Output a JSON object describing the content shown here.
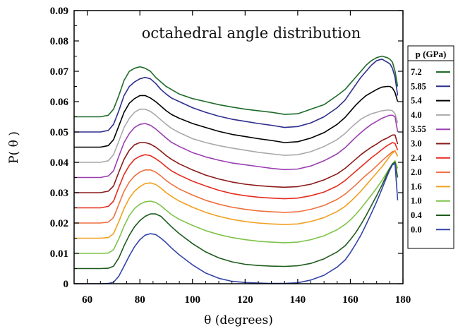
{
  "chart_data": {
    "type": "line",
    "title": "octahedral angle distribution",
    "xlabel": "θ (degrees)",
    "ylabel": "P( θ )",
    "xlim": [
      55,
      180
    ],
    "ylim": [
      0,
      0.09
    ],
    "xticks": [
      "60",
      "80",
      "100",
      "120",
      "140",
      "160",
      "180"
    ],
    "yticks": [
      "0",
      "0.01",
      "0.02",
      "0.03",
      "0.04",
      "0.05",
      "0.06",
      "0.07",
      "0.08",
      "0.09"
    ],
    "legend": {
      "title": "p (GPa)",
      "placement": "right"
    },
    "x": [
      55,
      60,
      65,
      68,
      70,
      72,
      74,
      76,
      78,
      80,
      82,
      84,
      86,
      88,
      90,
      92,
      95,
      100,
      105,
      110,
      115,
      120,
      125,
      130,
      135,
      140,
      145,
      150,
      155,
      158,
      160,
      162,
      164,
      166,
      168,
      170,
      172,
      174,
      175,
      176,
      177,
      178
    ],
    "series": [
      {
        "name": "7.2",
        "color": "#1f6b2a",
        "values": [
          0.055,
          0.055,
          0.055,
          0.0555,
          0.0575,
          0.062,
          0.067,
          0.07,
          0.071,
          0.0715,
          0.071,
          0.07,
          0.068,
          0.0665,
          0.065,
          0.064,
          0.0625,
          0.061,
          0.06,
          0.059,
          0.0582,
          0.0575,
          0.057,
          0.0565,
          0.0558,
          0.056,
          0.0575,
          0.059,
          0.062,
          0.064,
          0.066,
          0.068,
          0.07,
          0.072,
          0.0735,
          0.0745,
          0.075,
          0.0745,
          0.074,
          0.073,
          0.07,
          0.065
        ]
      },
      {
        "name": "5.85",
        "color": "#2e2e8c",
        "values": [
          0.05,
          0.05,
          0.05,
          0.0505,
          0.0525,
          0.057,
          0.062,
          0.065,
          0.0665,
          0.0675,
          0.068,
          0.0675,
          0.066,
          0.064,
          0.0625,
          0.0612,
          0.06,
          0.058,
          0.0565,
          0.0552,
          0.0542,
          0.0535,
          0.0528,
          0.0522,
          0.0515,
          0.0518,
          0.053,
          0.055,
          0.058,
          0.0605,
          0.063,
          0.0655,
          0.068,
          0.07,
          0.072,
          0.0735,
          0.074,
          0.073,
          0.0725,
          0.071,
          0.068,
          0.062
        ]
      },
      {
        "name": "5.4",
        "color": "#000000",
        "values": [
          0.045,
          0.045,
          0.045,
          0.0455,
          0.0475,
          0.052,
          0.0565,
          0.0595,
          0.061,
          0.062,
          0.062,
          0.0612,
          0.06,
          0.0585,
          0.057,
          0.0558,
          0.0545,
          0.0528,
          0.0515,
          0.0502,
          0.0492,
          0.0485,
          0.0478,
          0.0472,
          0.0465,
          0.0468,
          0.048,
          0.0498,
          0.0525,
          0.0548,
          0.0568,
          0.0588,
          0.0605,
          0.062,
          0.063,
          0.064,
          0.0648,
          0.065,
          0.065,
          0.0645,
          0.063,
          0.06
        ]
      },
      {
        "name": "4.0",
        "color": "#a9a9a9",
        "values": [
          0.04,
          0.04,
          0.04,
          0.0405,
          0.0425,
          0.047,
          0.0515,
          0.0545,
          0.0565,
          0.0575,
          0.0575,
          0.0568,
          0.0555,
          0.054,
          0.0525,
          0.0512,
          0.0498,
          0.0478,
          0.0465,
          0.0455,
          0.0447,
          0.044,
          0.0433,
          0.0428,
          0.0423,
          0.0425,
          0.0435,
          0.0452,
          0.0475,
          0.0495,
          0.0512,
          0.0528,
          0.0542,
          0.0552,
          0.056,
          0.0565,
          0.057,
          0.0572,
          0.0572,
          0.057,
          0.056,
          0.053
        ]
      },
      {
        "name": "3.55",
        "color": "#9a3fb0",
        "values": [
          0.035,
          0.035,
          0.035,
          0.0355,
          0.0372,
          0.042,
          0.0465,
          0.0495,
          0.0515,
          0.0525,
          0.0528,
          0.0522,
          0.051,
          0.0495,
          0.048,
          0.0466,
          0.0452,
          0.0432,
          0.0418,
          0.0407,
          0.0398,
          0.0392,
          0.0386,
          0.038,
          0.0376,
          0.0378,
          0.0388,
          0.0405,
          0.0428,
          0.0448,
          0.0465,
          0.0482,
          0.0498,
          0.0512,
          0.0525,
          0.0535,
          0.0545,
          0.0552,
          0.0555,
          0.0555,
          0.055,
          0.05
        ]
      },
      {
        "name": "3.0",
        "color": "#8b1a1a",
        "values": [
          0.03,
          0.03,
          0.03,
          0.0305,
          0.0322,
          0.0368,
          0.041,
          0.044,
          0.0458,
          0.0465,
          0.0465,
          0.046,
          0.045,
          0.0437,
          0.0422,
          0.041,
          0.0395,
          0.0375,
          0.0358,
          0.0345,
          0.0335,
          0.0328,
          0.0323,
          0.032,
          0.0318,
          0.032,
          0.0328,
          0.0342,
          0.0362,
          0.038,
          0.0395,
          0.041,
          0.0425,
          0.0438,
          0.045,
          0.046,
          0.0472,
          0.048,
          0.0485,
          0.049,
          0.049,
          0.046
        ]
      },
      {
        "name": "2.4",
        "color": "#e52c1f",
        "values": [
          0.025,
          0.025,
          0.025,
          0.0255,
          0.0272,
          0.0318,
          0.036,
          0.039,
          0.041,
          0.042,
          0.0425,
          0.0422,
          0.0412,
          0.04,
          0.0385,
          0.0372,
          0.0358,
          0.0338,
          0.0322,
          0.0308,
          0.0297,
          0.029,
          0.0285,
          0.0282,
          0.028,
          0.0282,
          0.029,
          0.0302,
          0.0322,
          0.034,
          0.0355,
          0.037,
          0.0385,
          0.04,
          0.0415,
          0.0428,
          0.0442,
          0.0455,
          0.046,
          0.0465,
          0.0462,
          0.044
        ]
      },
      {
        "name": "2.0",
        "color": "#f07040",
        "values": [
          0.02,
          0.02,
          0.02,
          0.0203,
          0.0218,
          0.0262,
          0.0305,
          0.0335,
          0.0355,
          0.0368,
          0.0375,
          0.0375,
          0.0368,
          0.0355,
          0.034,
          0.0328,
          0.0312,
          0.0292,
          0.0275,
          0.0262,
          0.0252,
          0.0245,
          0.024,
          0.0237,
          0.0235,
          0.0237,
          0.0245,
          0.0258,
          0.0278,
          0.0295,
          0.031,
          0.0325,
          0.0342,
          0.0358,
          0.0372,
          0.0388,
          0.0405,
          0.042,
          0.0428,
          0.0435,
          0.0438,
          0.042
        ]
      },
      {
        "name": "1.6",
        "color": "#f0a020",
        "values": [
          0.015,
          0.015,
          0.015,
          0.0152,
          0.0165,
          0.0205,
          0.0248,
          0.0282,
          0.0305,
          0.032,
          0.033,
          0.0332,
          0.0327,
          0.0315,
          0.03,
          0.0288,
          0.0272,
          0.0252,
          0.0235,
          0.0222,
          0.0212,
          0.0205,
          0.02,
          0.0197,
          0.0195,
          0.0197,
          0.0205,
          0.0218,
          0.0238,
          0.0255,
          0.027,
          0.0287,
          0.0305,
          0.0325,
          0.0345,
          0.0365,
          0.0385,
          0.0408,
          0.042,
          0.043,
          0.0438,
          0.042
        ]
      },
      {
        "name": "1.0",
        "color": "#7ec34a",
        "values": [
          0.01,
          0.01,
          0.01,
          0.0101,
          0.0112,
          0.0148,
          0.019,
          0.0225,
          0.0248,
          0.0262,
          0.027,
          0.0272,
          0.0268,
          0.0257,
          0.0242,
          0.0228,
          0.0212,
          0.0192,
          0.0175,
          0.0162,
          0.0152,
          0.0145,
          0.014,
          0.0137,
          0.0135,
          0.0137,
          0.0145,
          0.0158,
          0.0178,
          0.0195,
          0.021,
          0.0228,
          0.0248,
          0.027,
          0.0292,
          0.0315,
          0.034,
          0.0368,
          0.0382,
          0.0395,
          0.0405,
          0.038
        ]
      },
      {
        "name": "0.4",
        "color": "#1e5c1e",
        "values": [
          0.005,
          0.005,
          0.005,
          0.0051,
          0.0058,
          0.0085,
          0.0125,
          0.016,
          0.0188,
          0.0208,
          0.0222,
          0.023,
          0.023,
          0.0222,
          0.0205,
          0.0188,
          0.0165,
          0.0132,
          0.0105,
          0.0085,
          0.0072,
          0.0064,
          0.006,
          0.0058,
          0.0057,
          0.0059,
          0.0067,
          0.0082,
          0.0105,
          0.0125,
          0.0145,
          0.0168,
          0.0195,
          0.0225,
          0.0258,
          0.029,
          0.0325,
          0.0362,
          0.038,
          0.0395,
          0.04,
          0.035
        ]
      },
      {
        "name": "0.0",
        "color": "#3344aa",
        "values": [
          0.0,
          0.0,
          0.0,
          0.0001,
          0.0005,
          0.0025,
          0.0058,
          0.0092,
          0.0122,
          0.0145,
          0.016,
          0.0165,
          0.0162,
          0.015,
          0.0135,
          0.0118,
          0.0095,
          0.0062,
          0.0035,
          0.0018,
          0.0008,
          0.0004,
          0.0002,
          0.0001,
          0.0001,
          0.0003,
          0.0012,
          0.0028,
          0.0055,
          0.0078,
          0.0102,
          0.013,
          0.016,
          0.0195,
          0.0232,
          0.027,
          0.0312,
          0.0355,
          0.0375,
          0.0392,
          0.0395,
          0.0275
        ]
      }
    ]
  }
}
